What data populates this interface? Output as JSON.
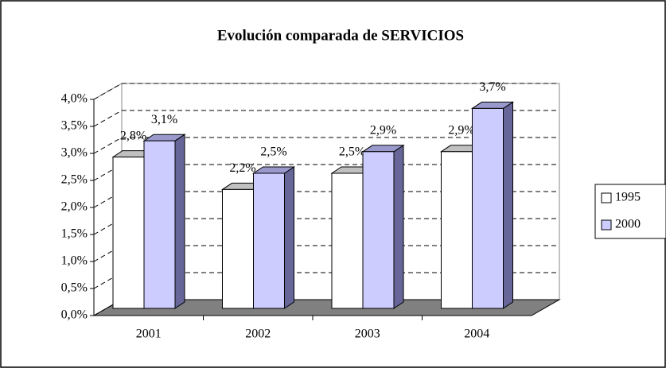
{
  "chart_data": {
    "type": "bar3d",
    "title": "Evolución comparada de SERVICIOS",
    "categories": [
      "2001",
      "2002",
      "2003",
      "2004"
    ],
    "series": [
      {
        "name": "1995",
        "color": "#ffffff",
        "values": [
          2.8,
          2.2,
          2.5,
          2.9
        ],
        "value_labels": [
          "2,8%",
          "2,2%",
          "2,5%",
          "2,9%"
        ]
      },
      {
        "name": "2000",
        "color": "#ccccff",
        "values": [
          3.1,
          2.5,
          2.9,
          3.7
        ],
        "value_labels": [
          "3,1%",
          "2,5%",
          "2,9%",
          "3,7%"
        ]
      }
    ],
    "ylim": [
      0,
      4
    ],
    "yticks": [
      {
        "value": 0,
        "label": "0,0%"
      },
      {
        "value": 0.5,
        "label": "0,5%"
      },
      {
        "value": 1,
        "label": "1,0%"
      },
      {
        "value": 1.5,
        "label": "1,5%"
      },
      {
        "value": 2,
        "label": "2,0%"
      },
      {
        "value": 2.5,
        "label": "2,5%"
      },
      {
        "value": 3,
        "label": "3,0%"
      },
      {
        "value": 3.5,
        "label": "3,5%"
      },
      {
        "value": 4,
        "label": "4,0%"
      }
    ],
    "grid": true,
    "legend": "right"
  }
}
